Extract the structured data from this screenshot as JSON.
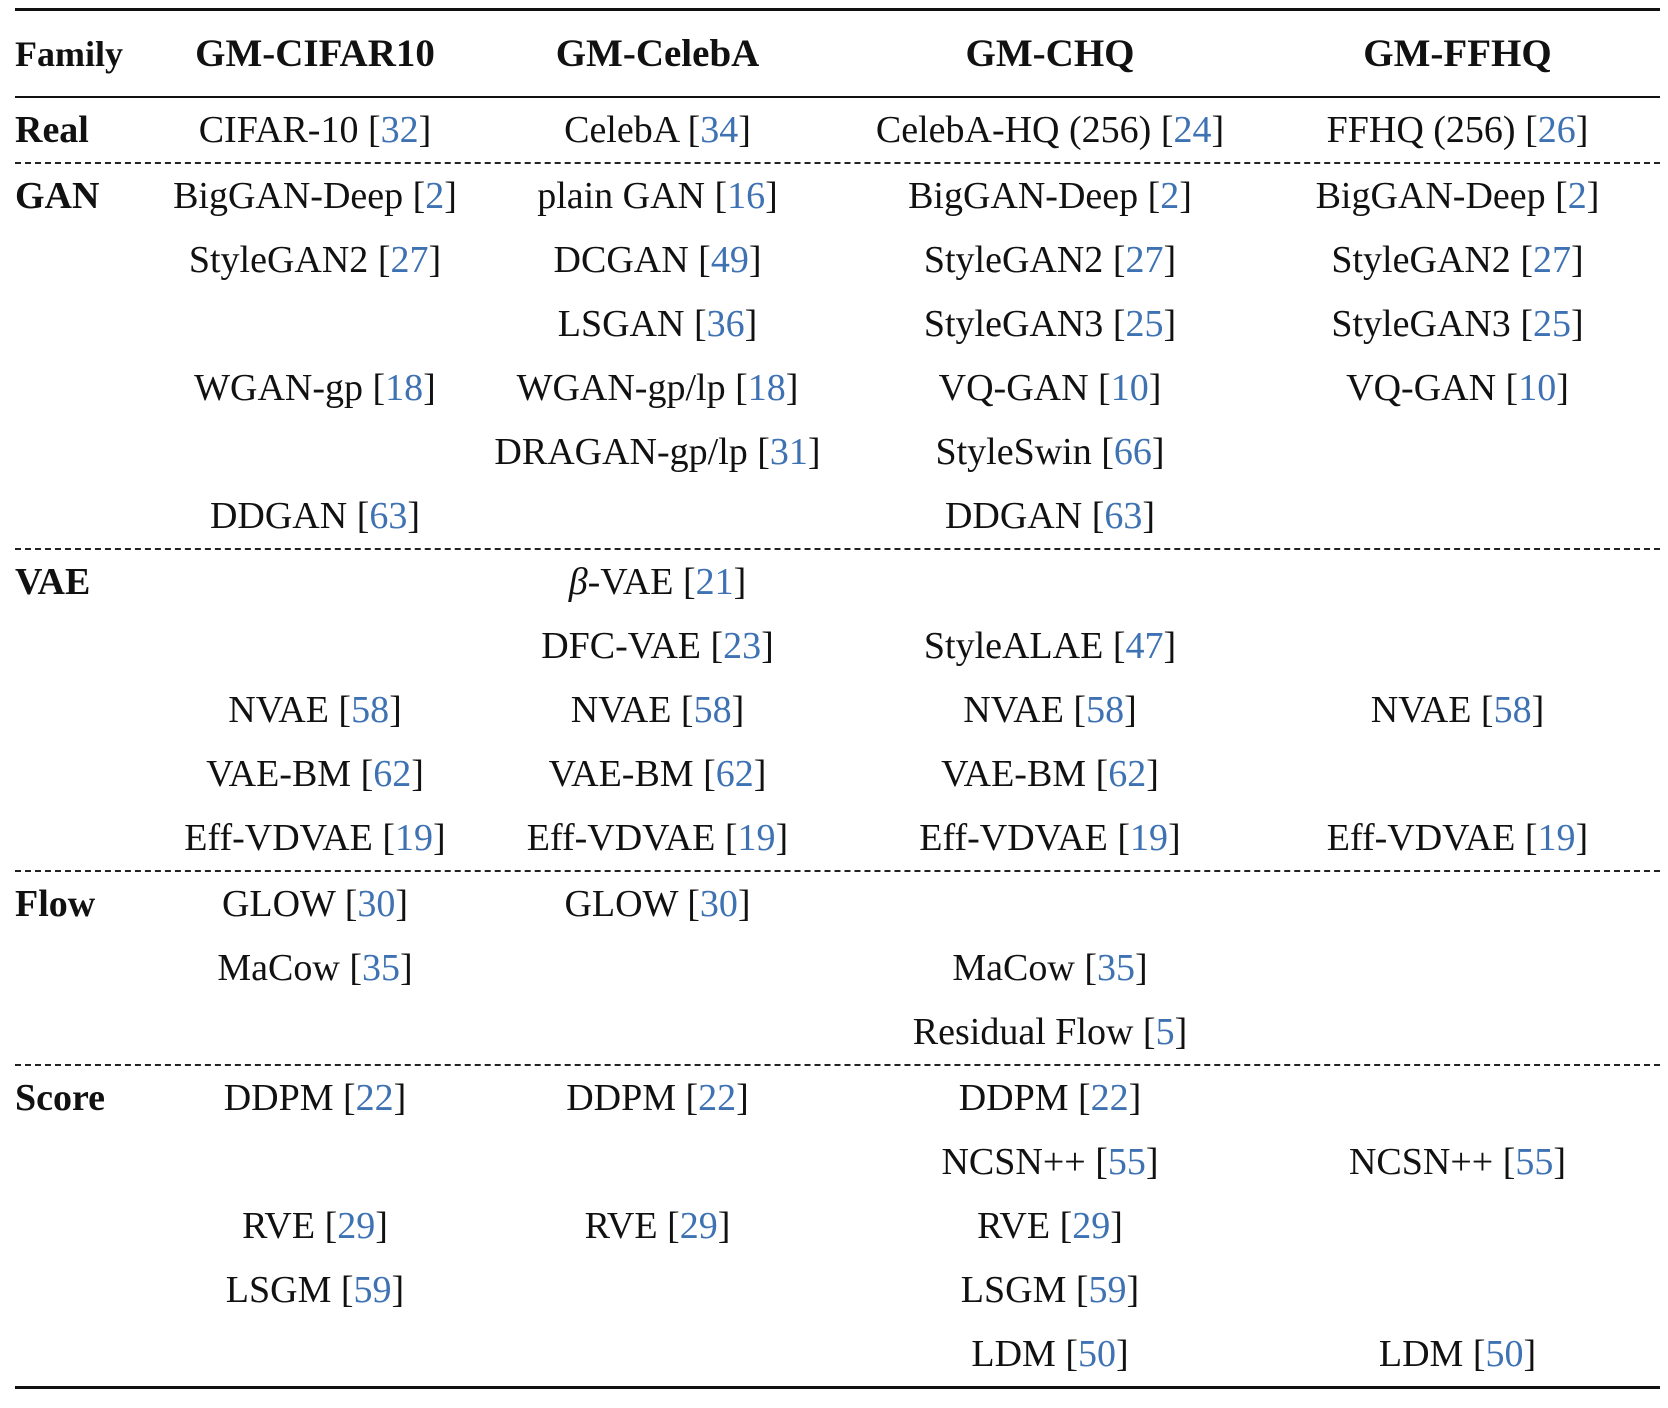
{
  "link_color": "#3e72b3",
  "header": {
    "family": "Family",
    "cols": [
      "GM-CIFAR10",
      "GM-CelebA",
      "GM-CHQ",
      "GM-FFHQ"
    ]
  },
  "rows": [
    {
      "family": "Real",
      "cells": [
        {
          "name": "CIFAR-10",
          "ref": "32"
        },
        {
          "name": "CelebA",
          "ref": "34"
        },
        {
          "name": "CelebA-HQ (256)",
          "ref": "24"
        },
        {
          "name": "FFHQ (256)",
          "ref": "26"
        }
      ]
    },
    {
      "family": "GAN",
      "cells": [
        {
          "name": "BigGAN-Deep",
          "ref": "2"
        },
        {
          "name": "plain GAN",
          "ref": "16"
        },
        {
          "name": "BigGAN-Deep",
          "ref": "2"
        },
        {
          "name": "BigGAN-Deep",
          "ref": "2"
        }
      ]
    },
    {
      "family": "",
      "cells": [
        {
          "name": "StyleGAN2",
          "ref": "27"
        },
        {
          "name": "DCGAN",
          "ref": "49"
        },
        {
          "name": "StyleGAN2",
          "ref": "27"
        },
        {
          "name": "StyleGAN2",
          "ref": "27"
        }
      ]
    },
    {
      "family": "",
      "cells": [
        null,
        {
          "name": "LSGAN",
          "ref": "36"
        },
        {
          "name": "StyleGAN3",
          "ref": "25"
        },
        {
          "name": "StyleGAN3",
          "ref": "25"
        }
      ]
    },
    {
      "family": "",
      "cells": [
        {
          "name": "WGAN-gp",
          "ref": "18"
        },
        {
          "name": "WGAN-gp/lp",
          "ref": "18"
        },
        {
          "name": "VQ-GAN",
          "ref": "10"
        },
        {
          "name": "VQ-GAN",
          "ref": "10"
        }
      ]
    },
    {
      "family": "",
      "cells": [
        null,
        {
          "name": "DRAGAN-gp/lp",
          "ref": "31"
        },
        {
          "name": "StyleSwin",
          "ref": "66"
        },
        null
      ]
    },
    {
      "family": "",
      "cells": [
        {
          "name": "DDGAN",
          "ref": "63"
        },
        null,
        {
          "name": "DDGAN",
          "ref": "63"
        },
        null
      ]
    },
    {
      "family": "VAE",
      "cells": [
        null,
        {
          "greek": "β",
          "name": "-VAE",
          "ref": "21"
        },
        null,
        null
      ]
    },
    {
      "family": "",
      "cells": [
        null,
        {
          "name": "DFC-VAE",
          "ref": "23"
        },
        {
          "name": "StyleALAE",
          "ref": "47"
        },
        null
      ]
    },
    {
      "family": "",
      "cells": [
        {
          "name": "NVAE",
          "ref": "58"
        },
        {
          "name": "NVAE",
          "ref": "58"
        },
        {
          "name": "NVAE",
          "ref": "58"
        },
        {
          "name": "NVAE",
          "ref": "58"
        }
      ]
    },
    {
      "family": "",
      "cells": [
        {
          "name": "VAE-BM",
          "ref": "62"
        },
        {
          "name": "VAE-BM",
          "ref": "62"
        },
        {
          "name": "VAE-BM",
          "ref": "62"
        },
        null
      ]
    },
    {
      "family": "",
      "cells": [
        {
          "name": "Eff-VDVAE",
          "ref": "19"
        },
        {
          "name": "Eff-VDVAE",
          "ref": "19"
        },
        {
          "name": "Eff-VDVAE",
          "ref": "19"
        },
        {
          "name": "Eff-VDVAE",
          "ref": "19"
        }
      ]
    },
    {
      "family": "Flow",
      "cells": [
        {
          "name": "GLOW",
          "ref": "30"
        },
        {
          "name": "GLOW",
          "ref": "30"
        },
        null,
        null
      ]
    },
    {
      "family": "",
      "cells": [
        {
          "name": "MaCow",
          "ref": "35"
        },
        null,
        {
          "name": "MaCow",
          "ref": "35"
        },
        null
      ]
    },
    {
      "family": "",
      "cells": [
        null,
        null,
        {
          "name": "Residual Flow",
          "ref": "5"
        },
        null
      ]
    },
    {
      "family": "Score",
      "cells": [
        {
          "name": "DDPM",
          "ref": "22"
        },
        {
          "name": "DDPM",
          "ref": "22"
        },
        {
          "name": "DDPM",
          "ref": "22"
        },
        null
      ]
    },
    {
      "family": "",
      "cells": [
        null,
        null,
        {
          "name": "NCSN++",
          "ref": "55"
        },
        {
          "name": "NCSN++",
          "ref": "55"
        }
      ]
    },
    {
      "family": "",
      "cells": [
        {
          "name": "RVE",
          "ref": "29"
        },
        {
          "name": "RVE",
          "ref": "29"
        },
        {
          "name": "RVE",
          "ref": "29"
        },
        null
      ]
    },
    {
      "family": "",
      "cells": [
        {
          "name": "LSGM",
          "ref": "59"
        },
        null,
        {
          "name": "LSGM",
          "ref": "59"
        },
        null
      ]
    },
    {
      "family": "",
      "cells": [
        null,
        null,
        {
          "name": "LDM",
          "ref": "50"
        },
        {
          "name": "LDM",
          "ref": "50"
        }
      ]
    }
  ],
  "section_breaks_after_rows": [
    0,
    6,
    11,
    14
  ]
}
